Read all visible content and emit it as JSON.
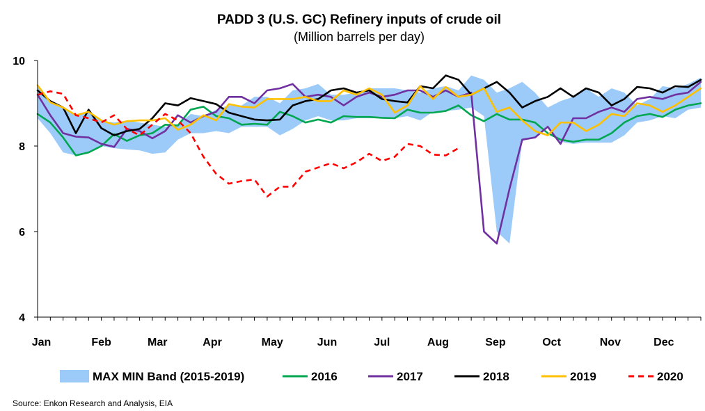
{
  "chart_data": {
    "type": "line",
    "title": "PADD 3 (U.S. GC) Refinery inputs of crude oil",
    "subtitle": "(Million barrels per day)",
    "xlabel": "",
    "ylabel": "",
    "x_tick_labels": [
      "Jan",
      "Feb",
      "Mar",
      "Apr",
      "May",
      "Jun",
      "Jul",
      "Aug",
      "Sep",
      "Oct",
      "Nov",
      "Dec"
    ],
    "x_unit": "week of year",
    "xlim": [
      1,
      53
    ],
    "y_tick_labels": [
      "4",
      "6",
      "8",
      "10"
    ],
    "ylim": [
      4,
      10
    ],
    "grid": false,
    "legend_position": "bottom",
    "band": {
      "name": "MAX MIN Band (2015-2019)",
      "color": "#9ccbfa",
      "upper": [
        9.4,
        9.05,
        8.9,
        8.7,
        8.8,
        8.6,
        8.55,
        8.6,
        8.55,
        8.5,
        8.45,
        8.5,
        8.75,
        8.7,
        8.85,
        8.95,
        8.95,
        9.15,
        9.15,
        9.0,
        9.3,
        9.35,
        9.45,
        9.2,
        9.2,
        9.25,
        9.35,
        9.35,
        9.35,
        9.3,
        9.25,
        9.35,
        9.4,
        9.3,
        9.65,
        9.55,
        9.25,
        9.35,
        9.5,
        9.25,
        8.9,
        9.05,
        9.15,
        9.35,
        9.15,
        9.35,
        9.25,
        8.95,
        9.1,
        9.4,
        9.35,
        9.45,
        9.6
      ],
      "lower": [
        8.65,
        8.3,
        7.85,
        7.78,
        7.85,
        8.0,
        7.95,
        7.92,
        7.9,
        7.82,
        7.85,
        8.15,
        8.3,
        8.3,
        8.35,
        8.3,
        8.45,
        8.45,
        8.45,
        8.25,
        8.4,
        8.6,
        8.7,
        8.6,
        8.6,
        8.65,
        8.65,
        8.65,
        8.65,
        8.7,
        8.6,
        8.8,
        8.82,
        8.85,
        8.9,
        8.7,
        6.0,
        5.72,
        8.12,
        8.2,
        8.45,
        8.1,
        8.05,
        8.08,
        8.08,
        8.08,
        8.25,
        8.55,
        8.6,
        8.7,
        8.65,
        8.85,
        8.9
      ]
    },
    "series": [
      {
        "name": "2016",
        "color": "#00a650",
        "dashed": false,
        "values": [
          8.75,
          8.55,
          8.2,
          7.78,
          7.85,
          8.0,
          8.28,
          8.12,
          8.25,
          8.3,
          8.5,
          8.48,
          8.85,
          8.92,
          8.7,
          8.65,
          8.5,
          8.52,
          8.5,
          8.8,
          8.7,
          8.55,
          8.62,
          8.55,
          8.7,
          8.68,
          8.68,
          8.66,
          8.65,
          8.85,
          8.78,
          8.78,
          8.82,
          8.95,
          8.72,
          8.58,
          8.75,
          8.62,
          8.62,
          8.55,
          8.3,
          8.15,
          8.1,
          8.15,
          8.15,
          8.3,
          8.55,
          8.7,
          8.75,
          8.68,
          8.85,
          8.95,
          9.0
        ]
      },
      {
        "name": "2017",
        "color": "#7030a0",
        "dashed": false,
        "values": [
          9.2,
          8.72,
          8.3,
          8.22,
          8.2,
          8.05,
          7.98,
          8.4,
          8.35,
          8.18,
          8.35,
          8.72,
          8.55,
          8.7,
          8.8,
          9.15,
          9.15,
          9.0,
          9.3,
          9.35,
          9.45,
          9.15,
          9.2,
          9.15,
          8.95,
          9.15,
          9.25,
          9.15,
          9.2,
          9.3,
          9.3,
          9.15,
          9.3,
          9.15,
          9.25,
          6.0,
          5.72,
          7.0,
          8.15,
          8.2,
          8.45,
          8.05,
          8.65,
          8.65,
          8.8,
          8.9,
          8.8,
          9.1,
          9.15,
          9.1,
          9.2,
          9.25,
          9.5
        ]
      },
      {
        "name": "2018",
        "color": "#000000",
        "dashed": false,
        "values": [
          9.3,
          9.05,
          8.9,
          8.3,
          8.85,
          8.42,
          8.25,
          8.35,
          8.4,
          8.65,
          9.0,
          8.95,
          9.12,
          9.05,
          8.98,
          8.78,
          8.7,
          8.62,
          8.6,
          8.62,
          8.95,
          9.05,
          9.1,
          9.3,
          9.35,
          9.25,
          9.3,
          9.1,
          9.05,
          9.02,
          9.4,
          9.35,
          9.65,
          9.55,
          9.2,
          9.35,
          9.5,
          9.25,
          8.9,
          9.05,
          9.15,
          9.35,
          9.15,
          9.35,
          9.25,
          8.95,
          9.1,
          9.38,
          9.35,
          9.25,
          9.4,
          9.38,
          9.55
        ]
      },
      {
        "name": "2019",
        "color": "#ffc000",
        "dashed": false,
        "values": [
          9.42,
          9.02,
          8.9,
          8.72,
          8.8,
          8.6,
          8.5,
          8.58,
          8.6,
          8.6,
          8.65,
          8.38,
          8.5,
          8.72,
          8.6,
          8.98,
          8.92,
          8.9,
          9.1,
          9.1,
          9.1,
          9.15,
          9.05,
          9.05,
          9.3,
          9.2,
          9.35,
          9.2,
          8.78,
          8.95,
          9.4,
          9.1,
          9.38,
          9.15,
          9.2,
          9.35,
          8.8,
          8.9,
          8.6,
          8.35,
          8.25,
          8.55,
          8.55,
          8.35,
          8.5,
          8.75,
          8.7,
          9.0,
          8.95,
          8.8,
          8.95,
          9.15,
          9.35
        ]
      },
      {
        "name": "2020",
        "color": "#ff0000",
        "dashed": true,
        "values": [
          9.2,
          9.28,
          9.22,
          8.72,
          8.65,
          8.55,
          8.72,
          8.4,
          8.25,
          8.5,
          8.75,
          8.6,
          8.3,
          7.75,
          7.35,
          7.12,
          7.18,
          7.22,
          6.82,
          7.05,
          7.05,
          7.4,
          7.5,
          7.6,
          7.48,
          7.62,
          7.82,
          7.65,
          7.75,
          8.05,
          8.0,
          7.8,
          7.78,
          7.95
        ]
      }
    ],
    "source": "Source:  Enkon Research and Analysis, EIA"
  }
}
